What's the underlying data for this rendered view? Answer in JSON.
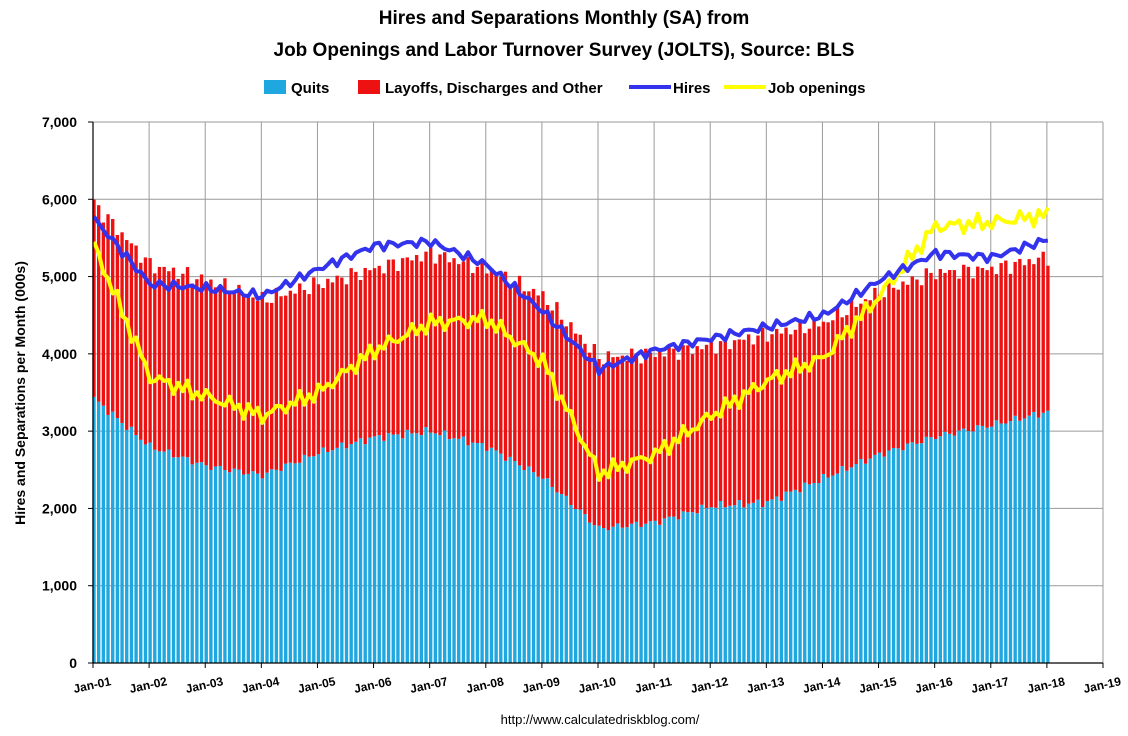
{
  "chart_data": {
    "type": "bar",
    "title_lines": [
      "Hires and Separations Monthly (SA) from",
      "Job Openings and Labor Turnover Survey (JOLTS), Source: BLS"
    ],
    "ylabel": "Hires and Separations per Month (000s)",
    "source": "http://www.calculatedriskblog.com/",
    "ylim": [
      0,
      7000
    ],
    "y_ticks": [
      "0",
      "1,000",
      "2,000",
      "3,000",
      "4,000",
      "5,000",
      "6,000",
      "7,000"
    ],
    "x_tick_labels": [
      "Jan-01",
      "Jan-02",
      "Jan-03",
      "Jan-04",
      "Jan-05",
      "Jan-06",
      "Jan-07",
      "Jan-08",
      "Jan-09",
      "Jan-10",
      "Jan-11",
      "Jan-12",
      "Jan-13",
      "Jan-14",
      "Jan-15",
      "Jan-16",
      "Jan-17",
      "Jan-18",
      "Jan-19"
    ],
    "grid": true,
    "legend_position": "top",
    "series": [
      {
        "name": "Quits",
        "kind": "stacked-bar",
        "color": "#1FA7E0"
      },
      {
        "name": "Layoffs, Discharges and Other",
        "kind": "stacked-bar",
        "color": "#EE1111"
      },
      {
        "name": "Hires",
        "kind": "line",
        "color": "#3333EE"
      },
      {
        "name": "Job openings",
        "kind": "line",
        "color": "#FFFF00"
      }
    ],
    "x_start": "Jan-01",
    "x_end": "Jan-18",
    "anchors_year": [
      2001,
      2002,
      2003,
      2004,
      2005,
      2006,
      2007,
      2008,
      2009,
      2010,
      2011,
      2012,
      2013,
      2014,
      2015,
      2016,
      2017,
      2018
    ],
    "quits_anchor": [
      3420,
      2800,
      2550,
      2430,
      2720,
      2920,
      3000,
      2800,
      2400,
      1740,
      1820,
      2030,
      2080,
      2390,
      2700,
      2930,
      3080,
      3250
    ],
    "total_sep_anchor": [
      5950,
      5150,
      4950,
      4700,
      4900,
      5100,
      5300,
      5100,
      4750,
      3950,
      4000,
      4100,
      4250,
      4400,
      4800,
      5050,
      5100,
      5250
    ],
    "hires_anchor": [
      5750,
      4900,
      4850,
      4750,
      5100,
      5400,
      5450,
      5150,
      4550,
      3800,
      4050,
      4200,
      4350,
      4500,
      4950,
      5300,
      5250,
      5480
    ],
    "openings_anchor": [
      5400,
      3700,
      3450,
      3200,
      3500,
      4050,
      4400,
      4450,
      3900,
      2450,
      2700,
      3200,
      3650,
      3950,
      4750,
      5650,
      5700,
      5800
    ]
  }
}
